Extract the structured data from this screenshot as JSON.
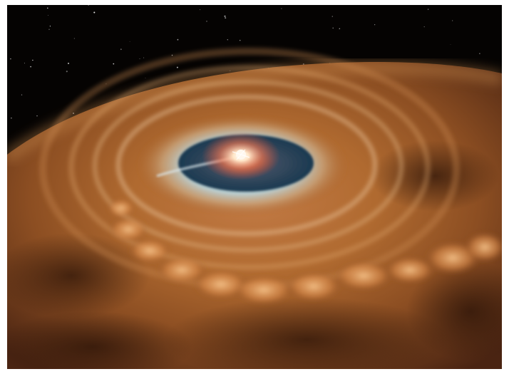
{
  "image": {
    "subject": "protoplanetary-disk",
    "colors": {
      "space": "#050302",
      "star_core": "#fff6e6",
      "star_glow": "#ff8a5a",
      "inner_gap": "#1d3f55",
      "inner_ring": "#9ec3cf",
      "dust_light": "#d99a55",
      "dust_mid": "#a8622b",
      "dust_dark": "#3a1c0c",
      "bright_clumps": "#f1b070"
    }
  }
}
